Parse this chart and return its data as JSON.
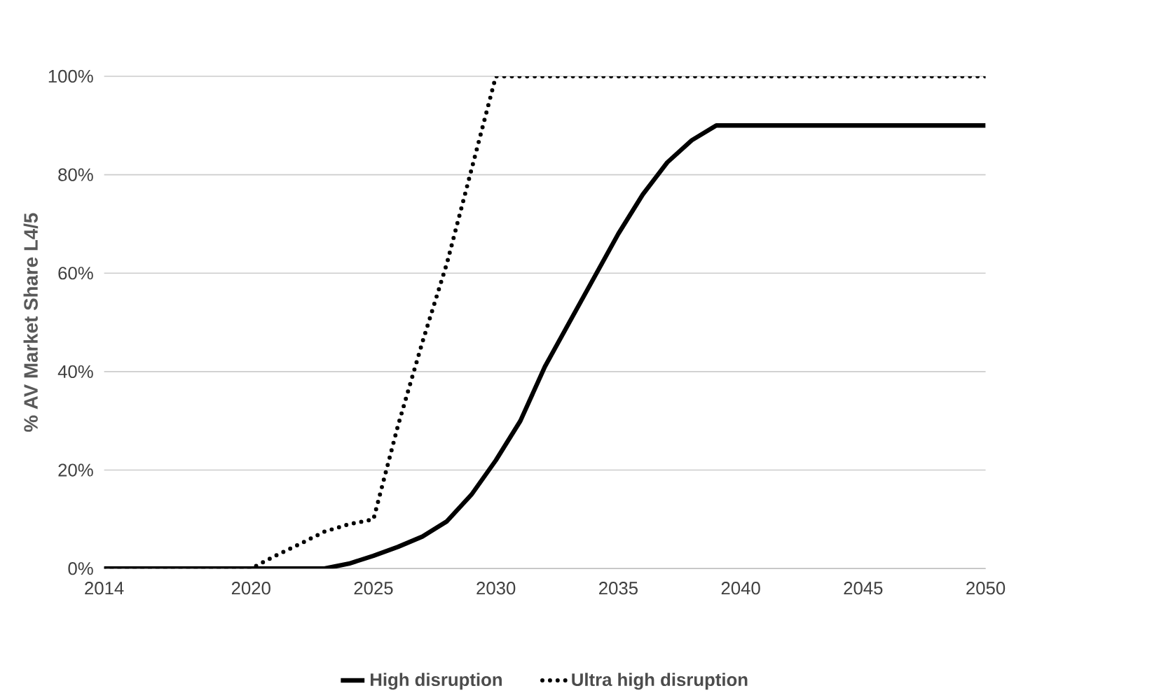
{
  "chart_data": {
    "type": "line",
    "ylabel": "% AV Market Share L4/5",
    "x": [
      2014,
      2015,
      2016,
      2017,
      2018,
      2019,
      2020,
      2021,
      2022,
      2023,
      2024,
      2025,
      2026,
      2027,
      2028,
      2029,
      2030,
      2031,
      2032,
      2033,
      2034,
      2035,
      2036,
      2037,
      2038,
      2039,
      2040,
      2041,
      2042,
      2043,
      2044,
      2045,
      2046,
      2047,
      2048,
      2049,
      2050
    ],
    "series": [
      {
        "name": "High disruption",
        "color": "#000000",
        "line_style": "solid",
        "values": [
          0,
          0,
          0,
          0,
          0,
          0,
          0,
          0,
          0,
          0,
          1,
          2.6,
          4.4,
          6.5,
          9.6,
          15,
          22,
          30,
          41,
          50,
          59,
          68,
          76,
          82.5,
          87,
          90,
          90,
          90,
          90,
          90,
          90,
          90,
          90,
          90,
          90,
          90,
          90
        ]
      },
      {
        "name": "Ultra high disruption",
        "color": "#000000",
        "line_style": "dotted",
        "values": [
          0,
          0,
          0,
          0,
          0,
          0,
          0,
          2.6,
          5,
          7.5,
          9,
          10,
          29,
          46,
          62,
          81,
          100,
          100,
          100,
          100,
          100,
          100,
          100,
          100,
          100,
          100,
          100,
          100,
          100,
          100,
          100,
          100,
          100,
          100,
          100,
          100,
          100
        ]
      }
    ],
    "xlim": [
      2014,
      2050
    ],
    "xticks": [
      2014,
      2020,
      2025,
      2030,
      2035,
      2040,
      2045,
      2050
    ],
    "ylim": [
      0,
      100
    ],
    "yticks": [
      {
        "value": 0,
        "label": "0%"
      },
      {
        "value": 20,
        "label": "20%"
      },
      {
        "value": 40,
        "label": "40%"
      },
      {
        "value": 60,
        "label": "60%"
      },
      {
        "value": 80,
        "label": "80%"
      },
      {
        "value": 100,
        "label": "100%"
      }
    ],
    "grid": "y",
    "legend": "bottom",
    "marker": "none"
  }
}
